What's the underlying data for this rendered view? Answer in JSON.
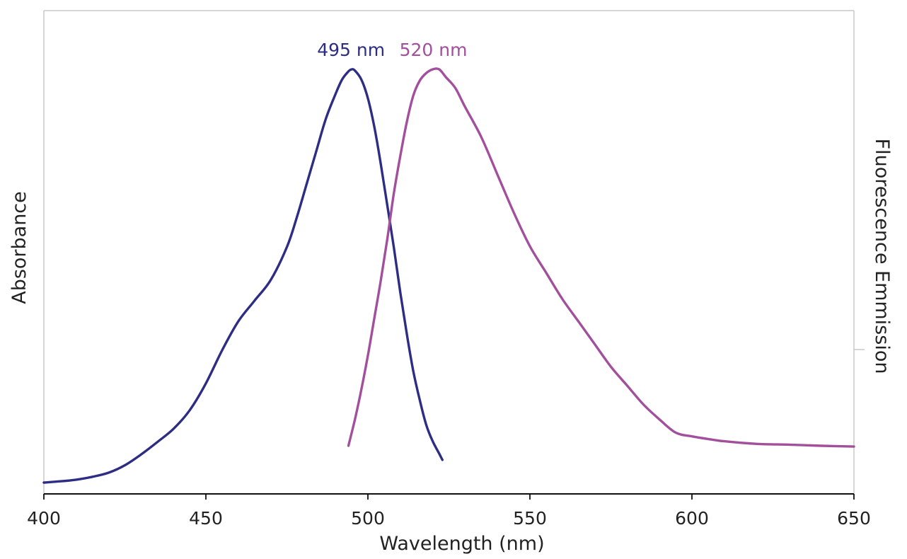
{
  "chart_data": {
    "type": "line",
    "xlabel": "Wavelength (nm)",
    "ylabel": "Absorbance",
    "y2label": "Fluorescence Emmission",
    "xlim": [
      400,
      650
    ],
    "ylim": [
      0,
      1.08
    ],
    "x_ticks": [
      "400",
      "450",
      "500",
      "550",
      "600",
      "650"
    ],
    "grid": false,
    "legend": "none",
    "series": [
      {
        "color": "#2e2d84",
        "axis": "left",
        "x": [
          400,
          405,
          410,
          415,
          420,
          425,
          430,
          435,
          440,
          445,
          450,
          455,
          460,
          465,
          470,
          475,
          478,
          481,
          484,
          487,
          490,
          492,
          494,
          495,
          496,
          498,
          500,
          502,
          504,
          506,
          508,
          510,
          512,
          514,
          516,
          518,
          520,
          522,
          523
        ],
        "y": [
          0.0,
          0.003,
          0.007,
          0.014,
          0.024,
          0.042,
          0.068,
          0.098,
          0.13,
          0.175,
          0.24,
          0.32,
          0.39,
          0.44,
          0.49,
          0.57,
          0.64,
          0.72,
          0.8,
          0.88,
          0.94,
          0.975,
          0.995,
          1.0,
          0.997,
          0.975,
          0.93,
          0.86,
          0.77,
          0.67,
          0.57,
          0.46,
          0.36,
          0.27,
          0.2,
          0.14,
          0.1,
          0.07,
          0.055
        ]
      },
      {
        "color": "#a24f9c",
        "axis": "right",
        "x": [
          494,
          496,
          498,
          500,
          502,
          504,
          506,
          508,
          510,
          512,
          514,
          516,
          518,
          520,
          522,
          524,
          527,
          530,
          535,
          540,
          545,
          550,
          555,
          560,
          565,
          570,
          575,
          580,
          585,
          590,
          595,
          600,
          605,
          610,
          620,
          630,
          640,
          650
        ],
        "y": [
          0.0,
          0.07,
          0.15,
          0.24,
          0.34,
          0.44,
          0.55,
          0.67,
          0.77,
          0.86,
          0.93,
          0.97,
          0.99,
          1.0,
          1.0,
          0.98,
          0.95,
          0.9,
          0.82,
          0.72,
          0.62,
          0.53,
          0.46,
          0.39,
          0.33,
          0.27,
          0.21,
          0.16,
          0.11,
          0.07,
          0.035,
          0.025,
          0.018,
          0.012,
          0.005,
          0.003,
          0.0,
          -0.002
        ]
      }
    ],
    "annotations": [
      {
        "text": "495 nm",
        "x": 495,
        "color": "#2e2d84"
      },
      {
        "text": "520 nm",
        "x": 520,
        "color": "#a24f9c"
      }
    ]
  }
}
